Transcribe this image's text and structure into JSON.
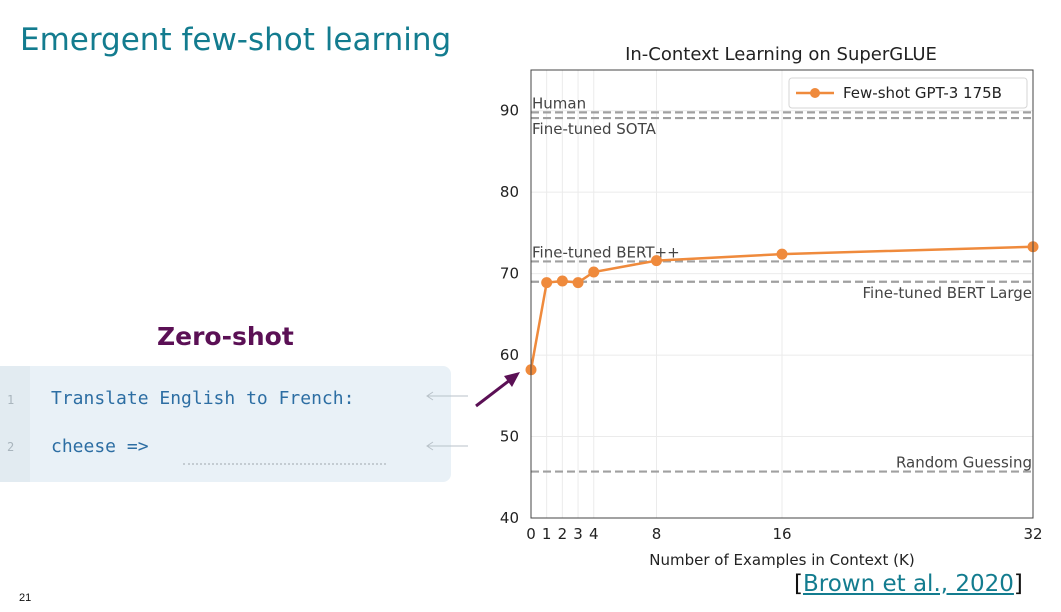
{
  "slide": {
    "title": "Emergent few-shot learning",
    "page_number": "21",
    "citation": {
      "open": "[",
      "link_text": "Brown et al., 2020",
      "close": "]"
    }
  },
  "zero_shot": {
    "title": "Zero-shot",
    "lines": [
      {
        "number": "1",
        "text": "Translate English to French:"
      },
      {
        "number": "2",
        "text": "cheese =>"
      }
    ]
  },
  "colors": {
    "title": "#137c8f",
    "zero_shot_title": "#5b1055",
    "series": "#ef8a3c",
    "reference_lines": "#a0a0a0",
    "arrow": "#5b1055"
  },
  "chart_data": {
    "type": "line",
    "title": "In-Context Learning on SuperGLUE",
    "xlabel": "Number of Examples in Context (K)",
    "ylabel": "",
    "xlim": [
      0,
      32
    ],
    "ylim": [
      40,
      95
    ],
    "xticks": [
      0,
      1,
      2,
      3,
      4,
      8,
      16,
      32
    ],
    "yticks": [
      40,
      50,
      60,
      70,
      80,
      90
    ],
    "grid": true,
    "legend_position": "top-right",
    "series": [
      {
        "name": "Few-shot GPT-3 175B",
        "x": [
          0,
          1,
          2,
          3,
          4,
          8,
          16,
          32
        ],
        "y": [
          58.2,
          68.9,
          69.1,
          68.9,
          70.2,
          71.6,
          72.4,
          73.3
        ]
      }
    ],
    "reference_lines": [
      {
        "label": "Human",
        "y": 89.8,
        "label_position": "left-above"
      },
      {
        "label": "Fine-tuned SOTA",
        "y": 89.1,
        "label_position": "left-below"
      },
      {
        "label": "Fine-tuned BERT++",
        "y": 71.5,
        "label_position": "left-above"
      },
      {
        "label": "Fine-tuned BERT Large",
        "y": 69.0,
        "label_position": "right-below"
      },
      {
        "label": "Random Guessing",
        "y": 45.7,
        "label_position": "right-above"
      }
    ]
  }
}
